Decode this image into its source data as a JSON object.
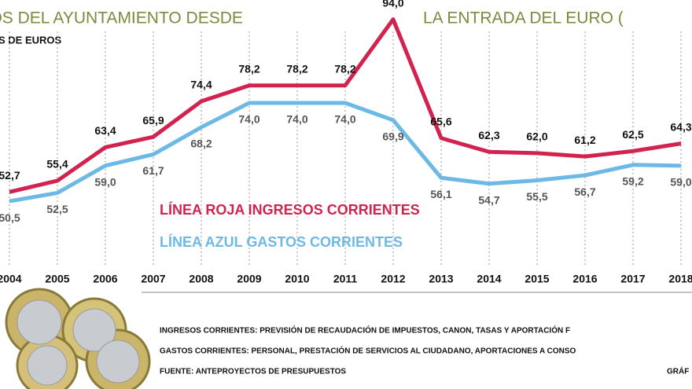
{
  "chart_data": {
    "type": "line",
    "title": [
      "STOS DEL AYUNTAMIENTO DESDE",
      "LA ENTRADA DEL EURO ("
    ],
    "subtitle": "S DE EUROS",
    "categories": [
      "2004",
      "2005",
      "2006",
      "2007",
      "2008",
      "2009",
      "2010",
      "2011",
      "2012",
      "2013",
      "2014",
      "2015",
      "2016",
      "2017",
      "2018"
    ],
    "series": [
      {
        "name": "LÍNEA ROJA INGRESOS  CORRIENTES",
        "color": "#d2234f",
        "values": [
          52.7,
          55.4,
          63.4,
          65.9,
          74.4,
          78.2,
          78.2,
          78.2,
          94.0,
          65.6,
          62.3,
          62.0,
          61.2,
          62.5,
          64.3
        ],
        "value_labels": [
          "52,7",
          "55,4",
          "63,4",
          "65,9",
          "74,4",
          "78,2",
          "78,2",
          "78,2",
          "94,0",
          "65,6",
          "62,3",
          "62,0",
          "61,2",
          "62,5",
          "64,3"
        ]
      },
      {
        "name": "LÍNEA AZUL GASTOS CORRIENTES",
        "color": "#6cb9e6",
        "values": [
          50.5,
          52.5,
          59.0,
          61.7,
          68.2,
          74.0,
          74.0,
          74.0,
          69.9,
          56.1,
          54.7,
          55.5,
          56.7,
          59.2,
          59.0
        ],
        "value_labels": [
          "50,5",
          "52,5",
          "59,0",
          "61,7",
          "68,2",
          "74,0",
          "74,0",
          "74,0",
          "69,9",
          "56,1",
          "54,7",
          "55,5",
          "56,7",
          "59,2",
          "59,0"
        ]
      }
    ],
    "ylim": [
      46,
      96
    ],
    "notes": [
      "INGRESOS CORRIENTES: PREVISIÓN DE RECAUDACIÓN DE IMPUESTOS, CANON,  TASAS Y APORTACIÓN F",
      "GASTOS CORRIENTES: PERSONAL, PRESTACIÓN DE SERVICIOS AL CIUDADANO, APORTACIONES A CONSO"
    ],
    "source": "FUENTE: ANTEPROYECTOS DE PRESUPUESTOS",
    "credit": "GRÁF"
  }
}
